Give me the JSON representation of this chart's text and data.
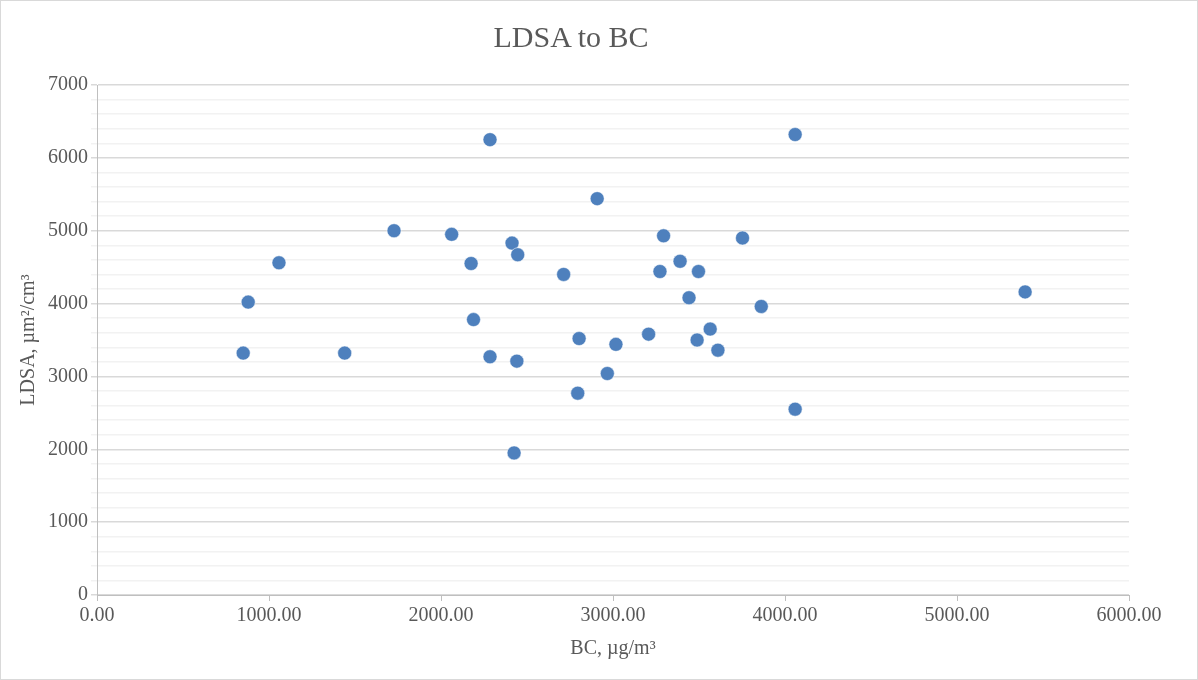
{
  "chart_data": {
    "type": "scatter",
    "title": "LDSA to BC",
    "xlabel": "BC, µg/m³",
    "ylabel": "LDSA, µm²/cm³",
    "x": [
      2285,
      2908,
      1727,
      2062,
      2413,
      2446,
      1058,
      2175,
      2713,
      879,
      2189,
      2803,
      3017,
      850,
      1440,
      2285,
      2441,
      2967,
      2795,
      2425,
      4059,
      3294,
      3753,
      3390,
      3273,
      3497,
      3442,
      3862,
      5396,
      3207,
      3565,
      3489,
      3610,
      4059
    ],
    "series": [
      {
        "color": "#4e80bd",
        "values": [
          6250,
          5440,
          5000,
          4950,
          4830,
          4670,
          4560,
          4550,
          4400,
          4020,
          3780,
          3520,
          3440,
          3320,
          3320,
          3270,
          3210,
          3040,
          2770,
          1950,
          6320,
          4930,
          4900,
          4580,
          4440,
          4440,
          4080,
          3960,
          4160,
          3580,
          3650,
          3500,
          3360,
          2550
        ]
      }
    ],
    "xlim": [
      0,
      6000
    ],
    "xticks": [
      {
        "value": 0,
        "label": "0.00"
      },
      {
        "value": 1000,
        "label": "1000.00"
      },
      {
        "value": 2000,
        "label": "2000.00"
      },
      {
        "value": 3000,
        "label": "3000.00"
      },
      {
        "value": 4000,
        "label": "4000.00"
      },
      {
        "value": 5000,
        "label": "5000.00"
      },
      {
        "value": 6000,
        "label": "6000.00"
      }
    ],
    "ylim": [
      0,
      7000
    ],
    "yticks": [
      0,
      {
        "value": 200,
        "label": null
      },
      {
        "value": 400,
        "label": null
      },
      {
        "value": 600,
        "label": null
      },
      {
        "value": 800,
        "label": null
      },
      1000,
      {
        "value": 1200,
        "label": null
      },
      {
        "value": 1400,
        "label": null
      },
      {
        "value": 1600,
        "label": null
      },
      {
        "value": 1800,
        "label": null
      },
      2000,
      {
        "value": 2200,
        "label": null
      },
      {
        "value": 2400,
        "label": null
      },
      {
        "value": 2600,
        "label": null
      },
      {
        "value": 2800,
        "label": null
      },
      3000,
      {
        "value": 3200,
        "label": null
      },
      {
        "value": 3400,
        "label": null
      },
      {
        "value": 3600,
        "label": null
      },
      {
        "value": 3800,
        "label": null
      },
      4000,
      {
        "value": 4200,
        "label": null
      },
      {
        "value": 4400,
        "label": null
      },
      {
        "value": 4600,
        "label": null
      },
      {
        "value": 4800,
        "label": null
      },
      5000,
      {
        "value": 5200,
        "label": null
      },
      {
        "value": 5400,
        "label": null
      },
      {
        "value": 5600,
        "label": null
      },
      {
        "value": 5800,
        "label": null
      },
      6000,
      {
        "value": 6200,
        "label": null
      },
      {
        "value": 6400,
        "label": null
      },
      {
        "value": 6600,
        "label": null
      },
      {
        "value": 6800,
        "label": null
      },
      7000
    ],
    "grid": "y",
    "legend": false,
    "marker": "circle"
  }
}
